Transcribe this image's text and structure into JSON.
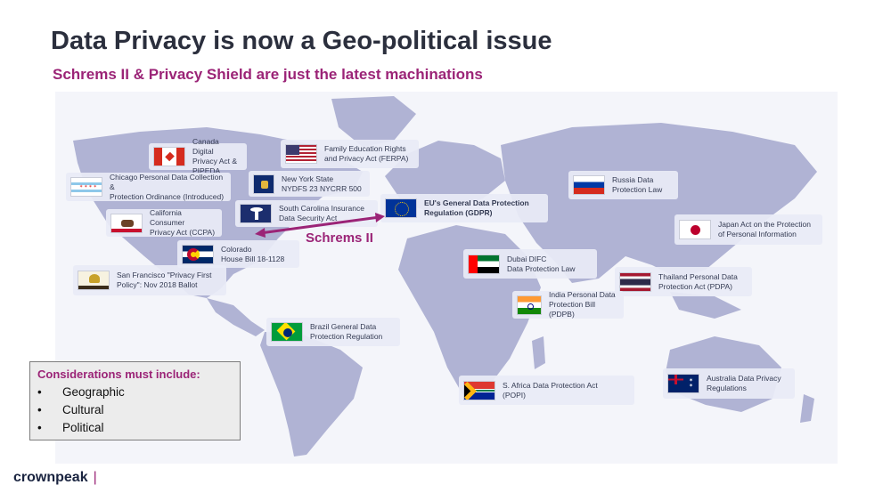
{
  "header": {
    "title": "Data Privacy is now a Geo-political issue",
    "subtitle": "Schrems II & Privacy Shield are just the latest machinations"
  },
  "colors": {
    "accent": "#9b2477",
    "land": "#b0b3d4",
    "title": "#2b2f3d"
  },
  "laws": [
    {
      "id": "canada",
      "line1": "Canada Digital",
      "line2": "Privacy Act & PIPEDA",
      "flag": "canada-flag"
    },
    {
      "id": "ferpa",
      "line1": "Family Education Rights",
      "line2": "and Privacy Act (FERPA)",
      "flag": "usa-flag"
    },
    {
      "id": "chicago",
      "line1": "Chicago Personal Data Collection &",
      "line2": "Protection Ordinance (Introduced)",
      "flag": "chicago-flag"
    },
    {
      "id": "newyork",
      "line1": "New York State",
      "line2": "NYDFS 23 NYCRR 500",
      "flag": "new-york-flag"
    },
    {
      "id": "california",
      "line1": "California Consumer",
      "line2": "Privacy Act (CCPA)",
      "flag": "california-flag"
    },
    {
      "id": "southcarolina",
      "line1": "South Carolina Insurance",
      "line2": "Data Security Act",
      "flag": "south-carolina-flag"
    },
    {
      "id": "gdpr",
      "line1": "EU's General Data Protection",
      "line2": "Regulation (GDPR)",
      "flag": "eu-flag"
    },
    {
      "id": "russia",
      "line1": "Russia Data",
      "line2": "Protection Law",
      "flag": "russia-flag"
    },
    {
      "id": "japan",
      "line1": "Japan Act on the Protection",
      "line2": "of Personal Information",
      "flag": "japan-flag"
    },
    {
      "id": "colorado",
      "line1": "Colorado",
      "line2": "House Bill 18-1128",
      "flag": "colorado-flag"
    },
    {
      "id": "dubai",
      "line1": "Dubai DIFC",
      "line2": "Data Protection Law",
      "flag": "uae-flag"
    },
    {
      "id": "sanfrancisco",
      "line1": "San Francisco \"Privacy First",
      "line2": "Policy\":  Nov 2018 Ballot",
      "flag": "san-francisco-flag"
    },
    {
      "id": "thailand",
      "line1": "Thailand Personal Data",
      "line2": "Protection Act (PDPA)",
      "flag": "thailand-flag"
    },
    {
      "id": "india",
      "line1": "India Personal Data",
      "line2": "Protection Bill (PDPB)",
      "flag": "india-flag"
    },
    {
      "id": "brazil",
      "line1": "Brazil General Data",
      "line2": "Protection Regulation",
      "flag": "brazil-flag"
    },
    {
      "id": "southafrica",
      "line1": "S. Africa Data Protection Act",
      "line2": "(POPI)",
      "flag": "south-africa-flag"
    },
    {
      "id": "australia",
      "line1": "Australia Data Privacy",
      "line2": "Regulations",
      "flag": "australia-flag"
    }
  ],
  "schrems_label": "Schrems II",
  "considerations": {
    "title": "Considerations  must include:",
    "bullet": "•",
    "items": [
      "Geographic",
      "Cultural",
      "Political"
    ]
  },
  "logo": {
    "text": "crownpeak",
    "bar": "|"
  }
}
